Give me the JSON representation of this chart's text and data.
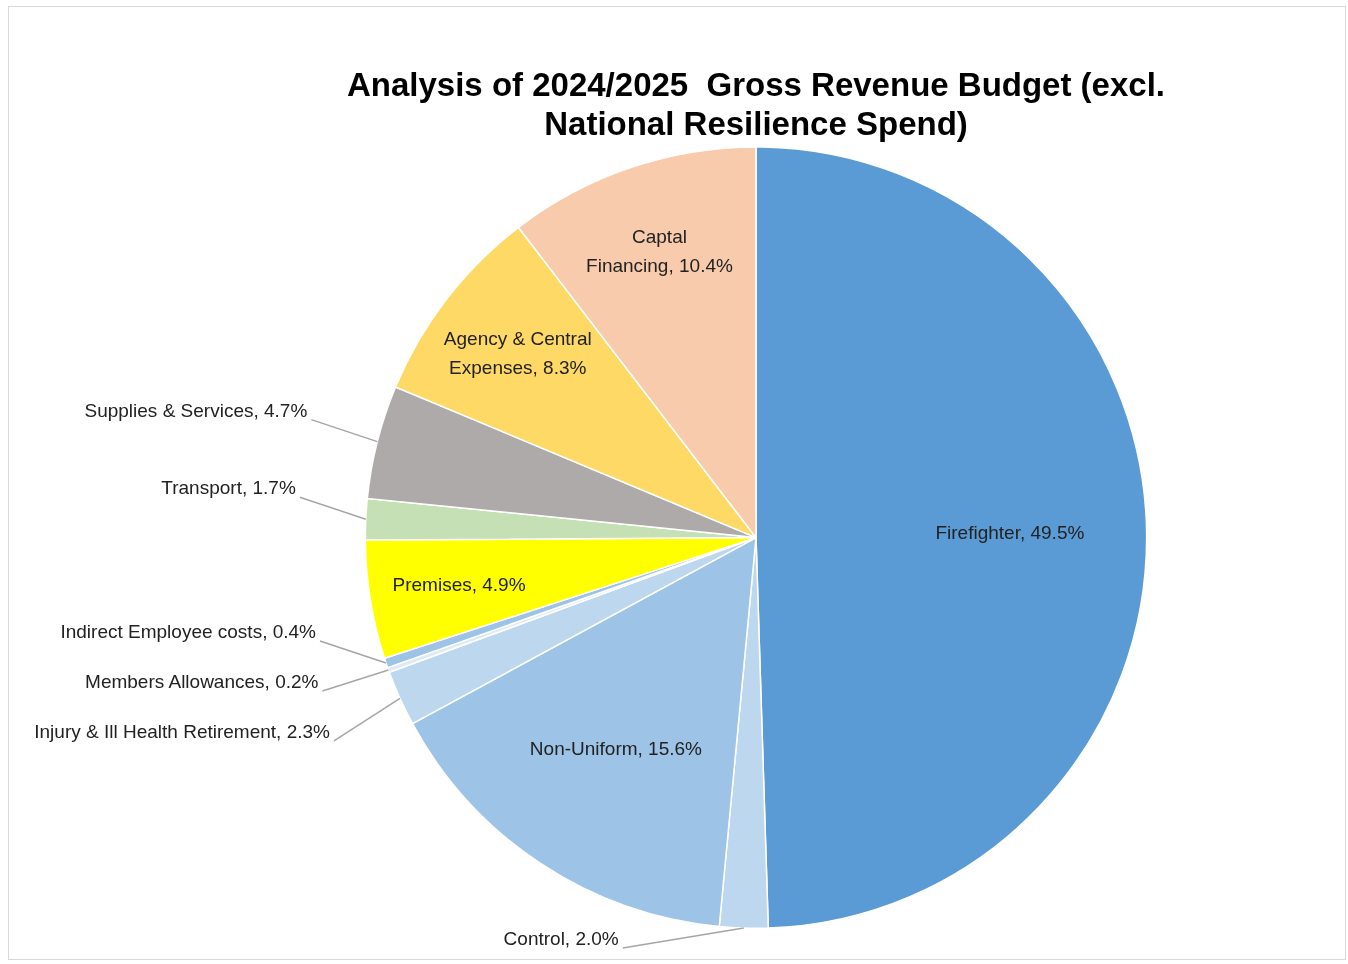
{
  "chart_data": {
    "type": "pie",
    "title": "Analysis of 2024/2025  Gross Revenue Budget (excl. National Resilience Spend)",
    "categories": [
      "Firefighter",
      "Control",
      "Non-Uniform",
      "Injury & Ill Health Retirement",
      "Members Allowances",
      "Indirect Employee costs",
      "Premises",
      "Transport",
      "Supplies & Services",
      "Agency & Central Expenses",
      "Captal Financing"
    ],
    "values": [
      49.5,
      2.0,
      15.6,
      2.3,
      0.2,
      0.4,
      4.9,
      1.7,
      4.7,
      8.3,
      10.4
    ],
    "value_labels": [
      "49.5%",
      "2.0%",
      "15.6%",
      "2.3%",
      "0.2%",
      "0.4%",
      "4.9%",
      "1.7%",
      "4.7%",
      "8.3%",
      "10.4%"
    ],
    "colors": [
      "#5b9bd5",
      "#bdd7ee",
      "#9dc3e6",
      "#bdd7ee",
      "#deebf7",
      "#9dc3e6",
      "#ffff00",
      "#c5e0b4",
      "#aeaaaa",
      "#ffd966",
      "#f8cbad"
    ],
    "legend": false
  }
}
